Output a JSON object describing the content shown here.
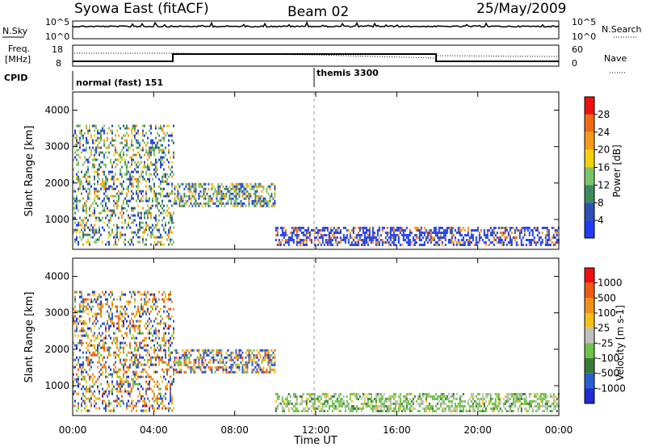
{
  "header": {
    "title": "Syowa East (fitACF)",
    "beam": "Beam 02",
    "date": "25/May/2009"
  },
  "left_labels": {
    "nsky": "N.Sky",
    "freq": "Freq.",
    "mhz": "[MHz]",
    "cpid": "CPID"
  },
  "right_labels": {
    "nsearch": "N.Search",
    "nave": "Nave"
  },
  "nsky_ticks": [
    "10^5",
    "10^0"
  ],
  "nsearch_ticks": [
    "10^5",
    "10^0"
  ],
  "freq_ticks": [
    "18",
    "8"
  ],
  "nave_ticks": [
    "60",
    "0"
  ],
  "cpid": {
    "mode1": "normal (fast) 151",
    "mode2": "themis 3300"
  },
  "colors": {
    "power": [
      "#1f3cf5",
      "#2e4fb3",
      "#3c8a5e",
      "#7cc46a",
      "#f2d20f",
      "#f59a1a",
      "#f06a14",
      "#ee1010"
    ],
    "velocity": [
      "#1e2ad8",
      "#2b5fd0",
      "#3c7a3a",
      "#6cc24a",
      "#bfbfbf",
      "#f2c01a",
      "#f09018",
      "#f05a10",
      "#ee1010"
    ]
  },
  "chart_data": [
    {
      "type": "heatmap",
      "name": "Power",
      "x": [
        "00:00",
        "04:00",
        "08:00",
        "12:00",
        "16:00",
        "20:00",
        "00:00"
      ],
      "xlabel": "",
      "ylabel": "Slant Range [km]",
      "yticks": [
        "4000",
        "3000",
        "2000",
        "1000"
      ],
      "ylim": [
        180,
        4500
      ],
      "colorbar": {
        "label": "Power [dB]",
        "ticks": [
          "28",
          "24",
          "20",
          "16",
          "12",
          "8",
          "4"
        ],
        "range": [
          0,
          30
        ]
      },
      "echo_regions": [
        {
          "t_start": "00:00",
          "t_end": "05:00",
          "range_min": 300,
          "range_max": 3600
        },
        {
          "t_start": "05:00",
          "t_end": "10:30",
          "range_min": 1400,
          "range_max": 2000
        },
        {
          "t_start": "10:00",
          "t_end": "24:00",
          "range_min": 300,
          "range_max": 800
        }
      ]
    },
    {
      "type": "heatmap",
      "name": "Velocity",
      "x": [
        "00:00",
        "04:00",
        "08:00",
        "12:00",
        "16:00",
        "20:00",
        "00:00"
      ],
      "xlabel": "Time UT",
      "ylabel": "Slant Range [km]",
      "yticks": [
        "4000",
        "3000",
        "2000",
        "1000"
      ],
      "ylim": [
        180,
        4500
      ],
      "colorbar": {
        "label": "Velocity [m s-1]",
        "ticks": [
          "1000",
          "500",
          "100",
          "25",
          "-25",
          "-100",
          "-500",
          "-1000"
        ]
      },
      "echo_regions": [
        {
          "t_start": "00:00",
          "t_end": "05:00",
          "range_min": 300,
          "range_max": 3600
        },
        {
          "t_start": "05:00",
          "t_end": "10:30",
          "range_min": 1400,
          "range_max": 2000
        },
        {
          "t_start": "10:00",
          "t_end": "24:00",
          "range_min": 300,
          "range_max": 800
        }
      ]
    }
  ]
}
